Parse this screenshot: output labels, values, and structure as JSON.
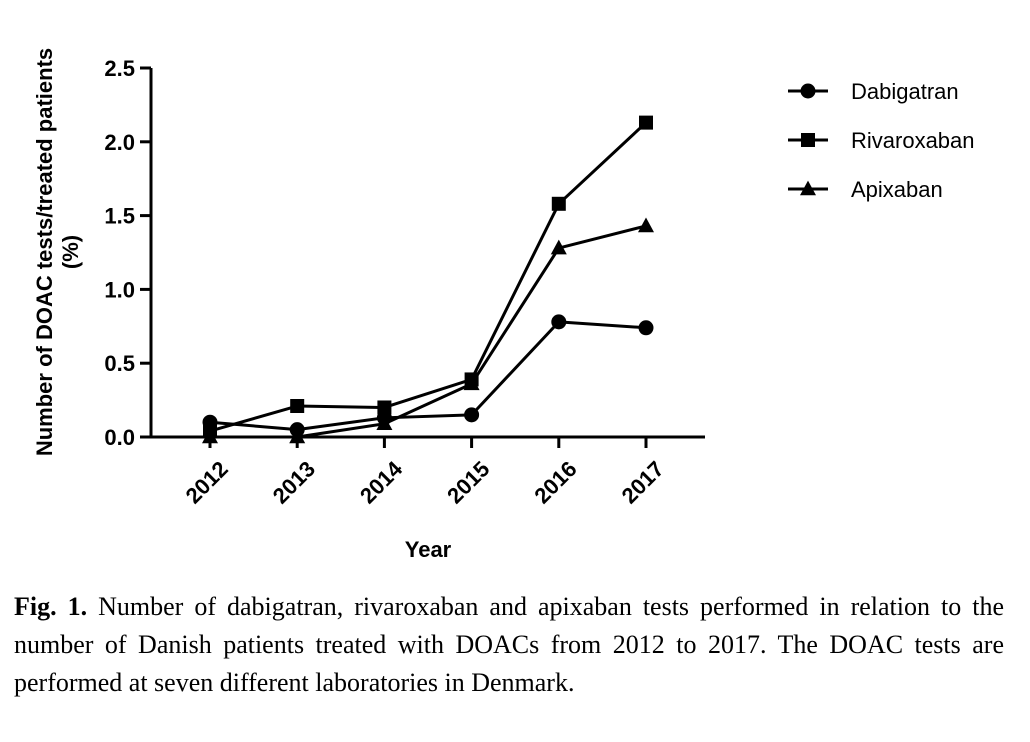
{
  "chart_data": {
    "type": "line",
    "categories": [
      "2012",
      "2013",
      "2014",
      "2015",
      "2016",
      "2017"
    ],
    "series": [
      {
        "name": "Dabigatran",
        "marker": "circle",
        "values": [
          0.1,
          0.05,
          0.13,
          0.15,
          0.78,
          0.74
        ]
      },
      {
        "name": "Rivaroxaban",
        "marker": "square",
        "values": [
          0.04,
          0.21,
          0.2,
          0.39,
          1.58,
          2.13
        ]
      },
      {
        "name": "Apixaban",
        "marker": "triangle",
        "values": [
          0.0,
          0.0,
          0.09,
          0.36,
          1.28,
          1.43
        ]
      }
    ],
    "title": "",
    "xlabel": "Year",
    "ylabel": "Number of DOAC tests/treated patients (%)",
    "ylabel_lines": [
      "Number of DOAC tests/treated patients",
      "(%)"
    ],
    "ylim": [
      0,
      2.5
    ],
    "yticks": [
      "0.0",
      "0.5",
      "1.0",
      "1.5",
      "2.0",
      "2.5"
    ],
    "grid": false,
    "legend_position": "right",
    "color": "#000000"
  },
  "caption": {
    "label": "Fig. 1.",
    "text": " Number of dabigatran, rivaroxaban and apixaban tests performed in relation to the number of Danish patients treated with DOACs from 2012 to 2017. The DOAC tests are performed at seven different laboratories in Denmark."
  }
}
